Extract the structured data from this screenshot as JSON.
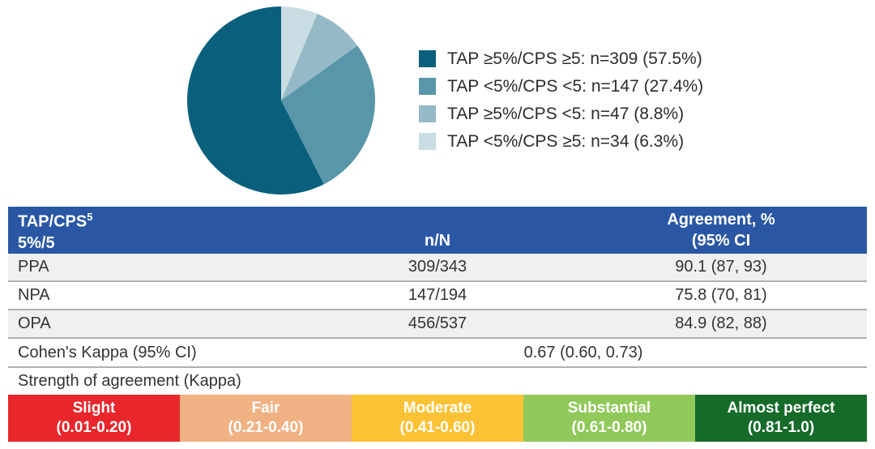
{
  "chart_data": {
    "type": "pie",
    "title": "",
    "slices": [
      {
        "label": "TAP ≥5%/CPS ≥5: n=309 (57.5%)",
        "category": "TAP ≥5%/CPS ≥5",
        "n": 309,
        "percent": 57.5,
        "color": "#0a607c"
      },
      {
        "label": "TAP <5%/CPS <5: n=147 (27.4%)",
        "category": "TAP <5%/CPS <5",
        "n": 147,
        "percent": 27.4,
        "color": "#5996a9"
      },
      {
        "label": "TAP ≥5%/CPS <5: n=47 (8.8%)",
        "category": "TAP ≥5%/CPS <5",
        "n": 47,
        "percent": 8.8,
        "color": "#95b9c6"
      },
      {
        "label": "TAP <5%/CPS ≥5: n=34 (6.3%)",
        "category": "TAP <5%/CPS ≥5",
        "n": 34,
        "percent": 6.3,
        "color": "#c9dde3"
      }
    ],
    "clockwise_from_top_order": [
      3,
      2,
      1,
      0
    ],
    "legend_position": "right"
  },
  "table": {
    "header": {
      "bg_color": "#2a57a4",
      "col1_line1": "TAP/CPS",
      "col1_superscript": "5",
      "col1_line2": "5%/5",
      "col2": "n/N",
      "col3_line1": "Agreement, %",
      "col3_line2": "(95% CI"
    },
    "rows": [
      {
        "label": "PPA",
        "n_N": "309/343",
        "agreement": "90.1 (87, 93)"
      },
      {
        "label": "NPA",
        "n_N": "147/194",
        "agreement": "75.8 (70, 81)"
      },
      {
        "label": "OPA",
        "n_N": "456/537",
        "agreement": "84.9 (82, 88)"
      }
    ],
    "kappa": {
      "label": "Cohen's Kappa (95% CI)",
      "value": "0.67 (0.60, 0.73)"
    },
    "strength_label": "Strength of agreement (Kappa)"
  },
  "scale": {
    "bands": [
      {
        "name": "Slight",
        "range": "(0.01-0.20)",
        "color": "#e8262b"
      },
      {
        "name": "Fair",
        "range": "(0.21-0.40)",
        "color": "#f0b183"
      },
      {
        "name": "Moderate",
        "range": "(0.41-0.60)",
        "color": "#fbc235"
      },
      {
        "name": "Substantial",
        "range": "(0.61-0.80)",
        "color": "#90c95a"
      },
      {
        "name": "Almost perfect",
        "range": "(0.81-1.0)",
        "color": "#166b2a"
      }
    ]
  }
}
